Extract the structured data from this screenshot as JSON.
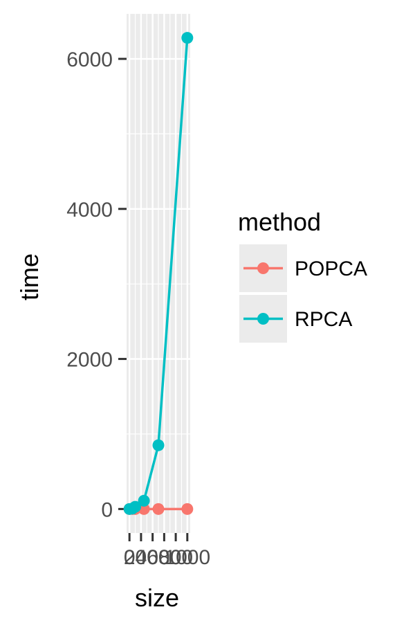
{
  "chart_data": {
    "type": "line",
    "xlabel": "size",
    "ylabel": "time",
    "x_tick_labels": [
      "0",
      "200",
      "400",
      "600",
      "800",
      "1000"
    ],
    "y_tick_labels": [
      "0",
      "2000",
      "4000",
      "6000"
    ],
    "x_ticks": [
      0,
      200,
      400,
      600,
      800,
      1000
    ],
    "y_ticks": [
      0,
      2000,
      4000,
      6000
    ],
    "xlim": [
      -50,
      1050
    ],
    "ylim": [
      -320,
      6600
    ],
    "grid": true,
    "legend": {
      "title": "method",
      "placement": "right"
    },
    "series": [
      {
        "name": "POPCA",
        "color": "#F8766D",
        "points": [
          [
            0,
            0
          ],
          [
            50,
            0
          ],
          [
            100,
            0
          ],
          [
            250,
            0
          ],
          [
            500,
            0
          ],
          [
            1000,
            0
          ]
        ]
      },
      {
        "name": "RPCA",
        "color": "#00BFC4",
        "points": [
          [
            0,
            0
          ],
          [
            50,
            5
          ],
          [
            100,
            30
          ],
          [
            250,
            110
          ],
          [
            500,
            850
          ],
          [
            1000,
            6280
          ]
        ]
      }
    ]
  }
}
